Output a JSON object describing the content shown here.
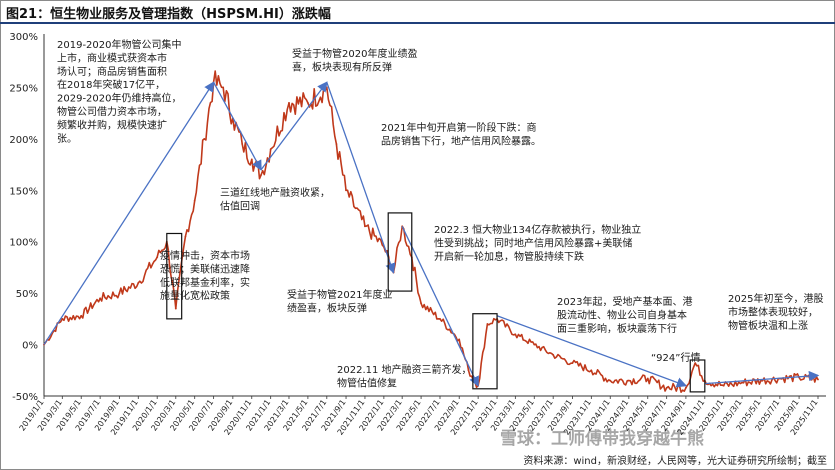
{
  "title": "图21：恒生物业服务及管理指数（HSPSM.HI）涨跌幅",
  "source": "资料来源：wind，新浪财经，人民网等，光大证券研究所绘制；截至",
  "watermark": "雪球：工师傅带我穿越牛熊",
  "colors": {
    "line": "#c0391b",
    "arrow": "#4a72c4",
    "box": "#111111",
    "title_rule": "#1f3f7a"
  },
  "chart_data": {
    "type": "line",
    "title": "恒生物业服务及管理指数（HSPSM.HI）涨跌幅",
    "ylim": [
      -50,
      300
    ],
    "yticks": [
      -50,
      0,
      50,
      100,
      150,
      200,
      250,
      300
    ],
    "ytick_labels": [
      "-50%",
      "0%",
      "50%",
      "100%",
      "150%",
      "200%",
      "250%",
      "300%"
    ],
    "x_tick_labels": [
      "2019/1/1",
      "2019/3/1",
      "2019/5/1",
      "2019/7/1",
      "2019/9/1",
      "2019/11/1",
      "2020/1/1",
      "2020/3/1",
      "2020/5/1",
      "2020/7/1",
      "2020/9/1",
      "2020/11/1",
      "2021/1/1",
      "2021/3/1",
      "2021/5/1",
      "2021/7/1",
      "2021/9/1",
      "2021/11/1",
      "2022/1/1",
      "2022/3/1",
      "2022/5/1",
      "2022/7/1",
      "2022/9/1",
      "2022/11/1",
      "2023/1/1",
      "2023/3/1",
      "2023/5/1",
      "2023/7/1",
      "2023/9/1",
      "2023/11/1",
      "2024/1/1",
      "2024/3/1",
      "2024/5/1",
      "2024/7/1",
      "2024/9/1",
      "2024/11/1",
      "2025/1/1",
      "2025/3/1",
      "2025/5/1",
      "2025/7/1",
      "2025/9/1",
      "2025/11/1"
    ],
    "series": [
      {
        "values": [
          [
            "2019/1/1",
            0
          ],
          [
            "2019/3/1",
            25
          ],
          [
            "2019/5/1",
            28
          ],
          [
            "2019/7/1",
            45
          ],
          [
            "2019/9/1",
            50
          ],
          [
            "2019/11/1",
            60
          ],
          [
            "2020/1/1",
            85
          ],
          [
            "2020/2/1",
            100
          ],
          [
            "2020/3/1",
            35
          ],
          [
            "2020/4/1",
            105
          ],
          [
            "2020/5/1",
            140
          ],
          [
            "2020/6/1",
            200
          ],
          [
            "2020/7/1",
            255
          ],
          [
            "2020/8/1",
            250
          ],
          [
            "2020/9/1",
            220
          ],
          [
            "2020/10/1",
            195
          ],
          [
            "2020/11/1",
            180
          ],
          [
            "2020/12/1",
            165
          ],
          [
            "2021/1/1",
            190
          ],
          [
            "2021/3/1",
            235
          ],
          [
            "2021/5/1",
            235
          ],
          [
            "2021/7/1",
            250
          ],
          [
            "2021/8/1",
            195
          ],
          [
            "2021/9/1",
            150
          ],
          [
            "2021/11/1",
            115
          ],
          [
            "2022/1/1",
            95
          ],
          [
            "2022/2/1",
            70
          ],
          [
            "2022/3/1",
            115
          ],
          [
            "2022/4/1",
            85
          ],
          [
            "2022/5/1",
            40
          ],
          [
            "2022/7/1",
            25
          ],
          [
            "2022/9/1",
            5
          ],
          [
            "2022/10/1",
            -25
          ],
          [
            "2022/11/1",
            -40
          ],
          [
            "2022/12/1",
            20
          ],
          [
            "2023/1/1",
            25
          ],
          [
            "2023/3/1",
            10
          ],
          [
            "2023/5/1",
            0
          ],
          [
            "2023/7/1",
            -10
          ],
          [
            "2023/9/1",
            -18
          ],
          [
            "2023/11/1",
            -25
          ],
          [
            "2024/1/1",
            -35
          ],
          [
            "2024/3/1",
            -35
          ],
          [
            "2024/5/1",
            -33
          ],
          [
            "2024/7/1",
            -42
          ],
          [
            "2024/9/1",
            -42
          ],
          [
            "2024/10/1",
            -18
          ],
          [
            "2024/11/1",
            -35
          ],
          [
            "2025/1/1",
            -40
          ],
          [
            "2025/3/1",
            -37
          ],
          [
            "2025/5/1",
            -35
          ],
          [
            "2025/7/1",
            -33
          ],
          [
            "2025/9/1",
            -32
          ],
          [
            "2025/11/1",
            -34
          ]
        ]
      }
    ],
    "annotations": [
      {
        "id": "a1",
        "lines": [
          "2019-2020年物管公司集中",
          "上市，商业模式获资本市",
          "场认可；商品房销售面积",
          "在2018年突破17亿平，",
          "2029-2020年仍维持高位，",
          "物管公司借力资本市场，",
          "频繁收并购，规模快速扩",
          "张。"
        ]
      },
      {
        "id": "a2",
        "lines": [
          "疫情冲击，资本市场",
          "恐慌；美联储迅速降",
          "低联邦基金利率，实",
          "施量化宽松政策"
        ]
      },
      {
        "id": "a3",
        "lines": [
          "三道红线地产融资收紧，",
          "估值回调"
        ]
      },
      {
        "id": "a4",
        "lines": [
          "受益于物管2020年度业绩盈",
          "喜，板块表现有所反弹"
        ]
      },
      {
        "id": "a5",
        "lines": [
          "2021年中旬开启第一阶段下跌：商",
          "品房销售下行，地产信用风险暴露。"
        ]
      },
      {
        "id": "a6",
        "lines": [
          "受益于物管2021年度业",
          "绩盈喜，板块反弹"
        ]
      },
      {
        "id": "a7",
        "lines": [
          "2022.3 恒大物业134亿存款被执行，物业独立",
          "性受到挑战；同时地产信用风险暴露+美联储",
          "开启新一轮加息，物管股持续下跌"
        ]
      },
      {
        "id": "a8",
        "lines": [
          "2022.11 地产融资三箭齐发，",
          "物管估值修复"
        ]
      },
      {
        "id": "a9",
        "lines": [
          "2023年起，受地产基本面、港",
          "股流动性、物业公司自身基本",
          "面三重影响，板块震荡下行"
        ]
      },
      {
        "id": "a10",
        "lines": [
          "“924”行情"
        ]
      },
      {
        "id": "a11",
        "lines": [
          "2025年初至今，港股",
          "市场整体表现较好，",
          "物管板块温和上涨"
        ]
      }
    ]
  }
}
